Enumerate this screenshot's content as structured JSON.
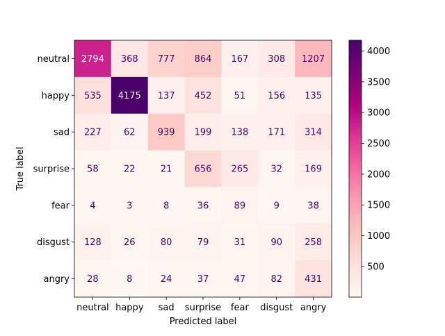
{
  "chart_data": {
    "type": "heatmap",
    "title": "",
    "xlabel": "Predicted label",
    "ylabel": "True label",
    "x_categories": [
      "neutral",
      "happy",
      "sad",
      "surprise",
      "fear",
      "disgust",
      "angry"
    ],
    "y_categories": [
      "neutral",
      "happy",
      "sad",
      "surprise",
      "fear",
      "disgust",
      "angry"
    ],
    "values": [
      [
        2794,
        368,
        777,
        864,
        167,
        308,
        1207
      ],
      [
        535,
        4175,
        137,
        452,
        51,
        156,
        135
      ],
      [
        227,
        62,
        939,
        199,
        138,
        171,
        314
      ],
      [
        58,
        22,
        21,
        656,
        265,
        32,
        169
      ],
      [
        4,
        3,
        8,
        36,
        89,
        9,
        38
      ],
      [
        128,
        26,
        80,
        79,
        31,
        90,
        258
      ],
      [
        28,
        8,
        24,
        37,
        47,
        82,
        431
      ]
    ],
    "colormap": "RdPu",
    "value_range": [
      3,
      4175
    ],
    "colorbar_ticks": [
      500,
      1000,
      1500,
      2000,
      2500,
      3000,
      3500,
      4000
    ],
    "colors": {
      "low": "#fff7f3",
      "high": "#49006a",
      "light_text": "#fff7f3",
      "dark_text": "#49006a"
    },
    "grid": false
  }
}
